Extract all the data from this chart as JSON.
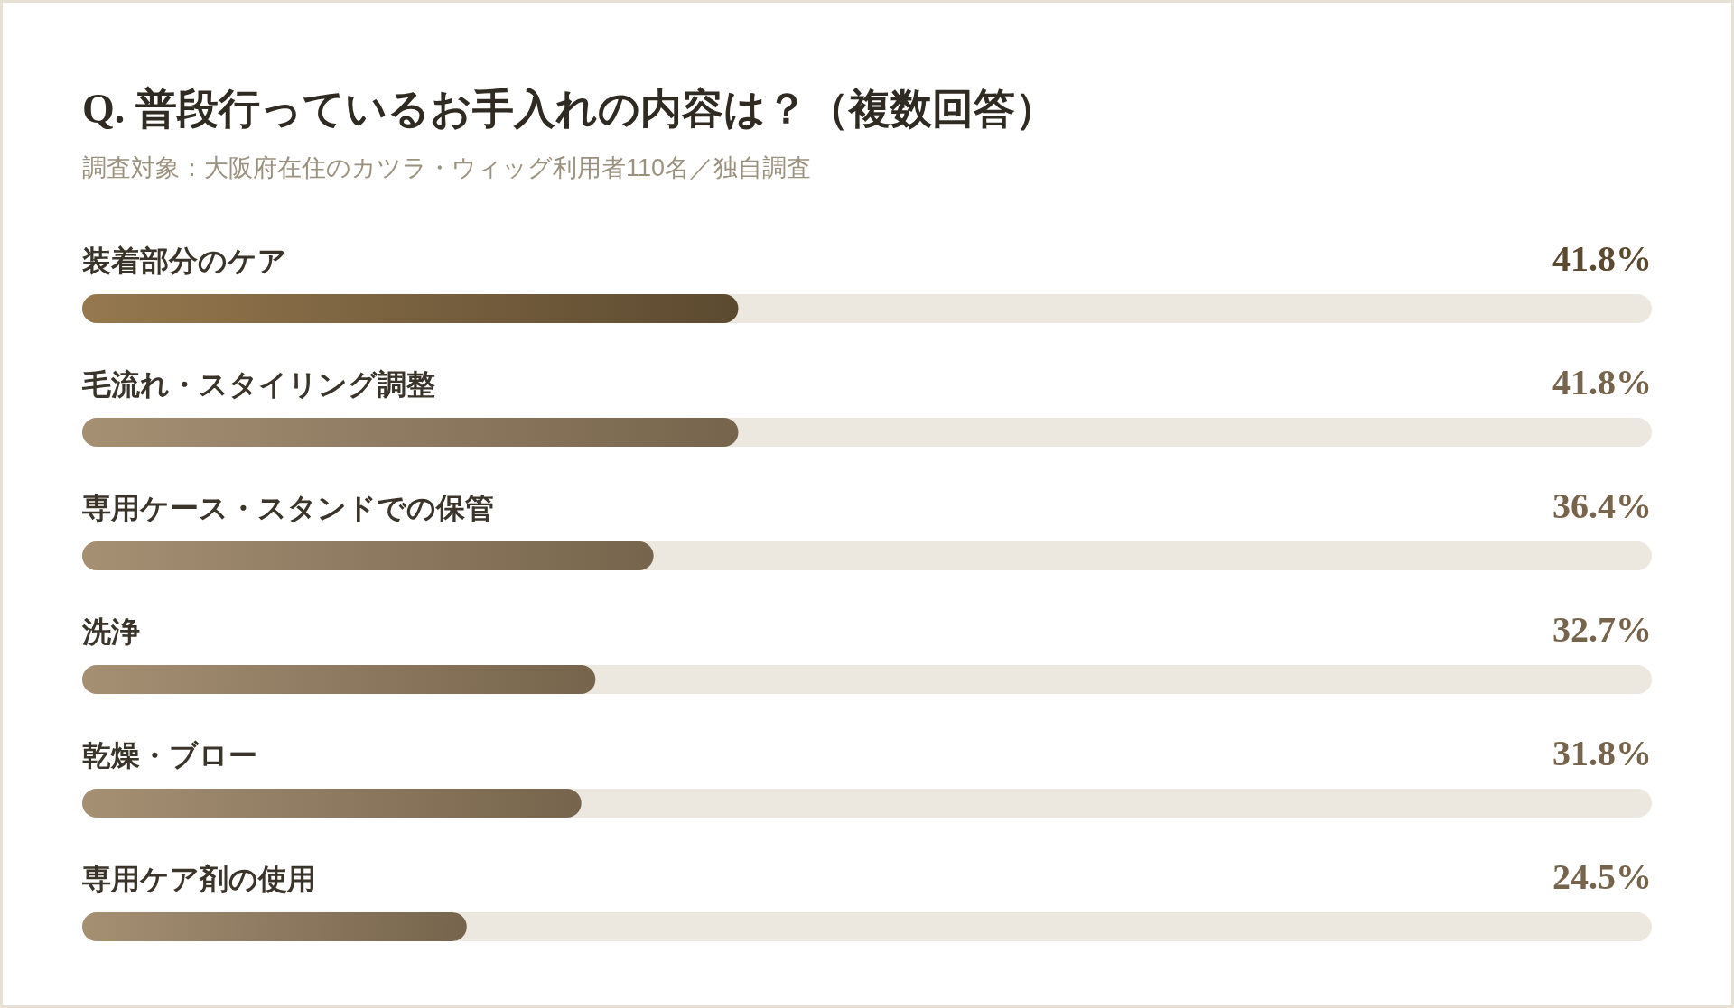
{
  "chart_data": {
    "type": "bar",
    "orientation": "horizontal",
    "title": "Q. 普段行っているお手入れの内容は？（複数回答）",
    "subtitle": "調査対象：大阪府在住のカツラ・ウィッグ利用者110名／独自調査",
    "categories": [
      "装着部分のケア",
      "毛流れ・スタイリング調整",
      "専用ケース・スタンドでの保管",
      "洗浄",
      "乾燥・ブロー",
      "専用ケア剤の使用"
    ],
    "values": [
      41.8,
      41.8,
      36.4,
      32.7,
      31.8,
      24.5
    ],
    "colors": [
      "#5c4a30",
      "#76644c",
      "#76644c",
      "#76644c",
      "#76644c",
      "#76644c"
    ],
    "value_labels": [
      "41.8%",
      "41.8%",
      "36.4%",
      "32.7%",
      "31.8%",
      "24.5%"
    ],
    "xlim": [
      0,
      100
    ],
    "tick_labels": "y"
  }
}
